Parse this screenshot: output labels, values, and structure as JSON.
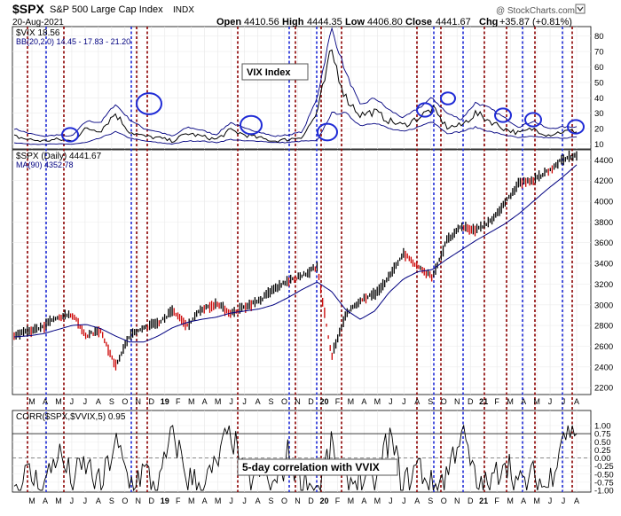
{
  "header": {
    "symbol": "$SPX",
    "name": "S&P 500 Large Cap Index",
    "exchange": "INDX",
    "date": "20-Aug-2021",
    "open_label": "Open",
    "open": "4410.56",
    "high_label": "High",
    "high": "4444.35",
    "low_label": "Low",
    "low": "4406.80",
    "close_label": "Close",
    "close": "4441.67",
    "chg_label": "Chg",
    "chg": "+35.87 (+0.81%)",
    "watermark": "@ StockCharts.com"
  },
  "vix_panel": {
    "legend_vix": "$VIX 18.56",
    "legend_bb": "BB(20,2.0) 14.45 - 17.83 - 21.20",
    "annotation": "VIX Index"
  },
  "price_panel": {
    "legend_price": "$SPX (Daily) 4441.67",
    "legend_ma": "MA(90) 4352.78"
  },
  "corr_panel": {
    "legend": "CORR($SPX,$VVIX,5) 0.95",
    "annotation": "5-day correlation with VVIX"
  },
  "month_labels": [
    "M",
    "A",
    "M",
    "J",
    "J",
    "A",
    "S",
    "O",
    "N",
    "D",
    "19",
    "F",
    "M",
    "A",
    "M",
    "J",
    "J",
    "A",
    "S",
    "O",
    "N",
    "D",
    "20",
    "F",
    "M",
    "A",
    "M",
    "J",
    "J",
    "A",
    "S",
    "O",
    "N",
    "D",
    "21",
    "F",
    "M",
    "A",
    "M",
    "J",
    "J",
    "A"
  ],
  "colors": {
    "price_up": "#000000",
    "price_down": "#cc0000",
    "ma": "#000080",
    "bb": "#000080",
    "circle": "#1f2bd6",
    "line_red": "#8b0000",
    "line_blue": "#1f2bd6"
  },
  "chart_data": [
    {
      "type": "line",
      "name": "VIX",
      "title": "$VIX",
      "y_ticks": [
        10,
        20,
        30,
        40,
        50,
        60,
        70,
        80
      ],
      "ylim": [
        8,
        85
      ],
      "x": [
        "2018-05",
        "2018-06",
        "2018-07",
        "2018-08",
        "2018-09",
        "2018-10",
        "2018-11",
        "2018-12",
        "2019-01",
        "2019-02",
        "2019-03",
        "2019-04",
        "2019-05",
        "2019-06",
        "2019-07",
        "2019-08",
        "2019-09",
        "2019-10",
        "2019-11",
        "2019-12",
        "2020-01",
        "2020-02",
        "2020-03",
        "2020-04",
        "2020-05",
        "2020-06",
        "2020-07",
        "2020-08",
        "2020-09",
        "2020-10",
        "2020-11",
        "2020-12",
        "2021-01",
        "2021-02",
        "2021-03",
        "2021-04",
        "2021-05",
        "2021-06",
        "2021-07",
        "2021-08"
      ],
      "series": [
        {
          "name": "$VIX",
          "values": [
            15,
            13,
            12,
            13,
            12,
            20,
            19,
            30,
            18,
            15,
            14,
            12,
            17,
            15,
            13,
            19,
            16,
            14,
            12,
            13,
            15,
            30,
            70,
            40,
            29,
            31,
            25,
            22,
            27,
            33,
            21,
            22,
            30,
            25,
            20,
            17,
            20,
            16,
            18,
            18.56
          ]
        },
        {
          "name": "BB upper",
          "values": [
            20,
            17,
            15,
            16,
            15,
            25,
            24,
            36,
            26,
            20,
            18,
            15,
            21,
            19,
            16,
            24,
            20,
            18,
            15,
            16,
            18,
            40,
            85,
            56,
            35,
            40,
            32,
            27,
            33,
            40,
            30,
            26,
            37,
            33,
            27,
            21,
            25,
            20,
            21,
            21.2
          ]
        },
        {
          "name": "BB lower",
          "values": [
            11,
            10,
            10,
            10,
            10,
            11,
            14,
            18,
            14,
            12,
            11,
            10,
            12,
            12,
            11,
            13,
            12,
            12,
            11,
            11,
            12,
            12,
            30,
            30,
            22,
            24,
            20,
            18,
            21,
            25,
            17,
            18,
            21,
            18,
            16,
            14,
            15,
            14,
            14,
            14.45
          ]
        }
      ]
    },
    {
      "type": "line",
      "name": "SPX",
      "title": "$SPX (Daily)",
      "y_ticks": [
        2200,
        2400,
        2600,
        2800,
        3000,
        3200,
        3400,
        3600,
        3800,
        4000,
        4200,
        4400
      ],
      "ylim": [
        2150,
        4480
      ],
      "x": [
        "2018-05",
        "2018-06",
        "2018-07",
        "2018-08",
        "2018-09",
        "2018-10",
        "2018-11",
        "2018-12",
        "2019-01",
        "2019-02",
        "2019-03",
        "2019-04",
        "2019-05",
        "2019-06",
        "2019-07",
        "2019-08",
        "2019-09",
        "2019-10",
        "2019-11",
        "2019-12",
        "2020-01",
        "2020-02",
        "2020-03",
        "2020-04",
        "2020-05",
        "2020-06",
        "2020-07",
        "2020-08",
        "2020-09",
        "2020-10",
        "2020-11",
        "2020-12",
        "2021-01",
        "2021-02",
        "2021-03",
        "2021-04",
        "2021-05",
        "2021-06",
        "2021-07",
        "2021-08"
      ],
      "series": [
        {
          "name": "$SPX",
          "values": [
            2700,
            2740,
            2790,
            2880,
            2910,
            2700,
            2760,
            2400,
            2700,
            2780,
            2830,
            2940,
            2800,
            2960,
            3010,
            2920,
            2980,
            3040,
            3150,
            3230,
            3280,
            3370,
            2500,
            2900,
            3050,
            3100,
            3270,
            3500,
            3360,
            3270,
            3620,
            3750,
            3720,
            3810,
            3970,
            4180,
            4200,
            4290,
            4400,
            4441.67
          ]
        },
        {
          "name": "MA(90)",
          "values": [
            2690,
            2700,
            2720,
            2760,
            2800,
            2810,
            2770,
            2700,
            2640,
            2640,
            2700,
            2780,
            2830,
            2860,
            2880,
            2920,
            2940,
            2960,
            3000,
            3070,
            3150,
            3220,
            3130,
            2950,
            2860,
            2940,
            3120,
            3250,
            3320,
            3340,
            3440,
            3530,
            3620,
            3700,
            3780,
            3880,
            4000,
            4120,
            4230,
            4352.78
          ]
        }
      ]
    },
    {
      "type": "line",
      "name": "CORR",
      "title": "CORR($SPX,$VVIX,5)",
      "y_ticks": [
        -1.0,
        -0.75,
        -0.5,
        -0.25,
        0.0,
        0.25,
        0.5,
        0.75,
        1.0
      ],
      "ylim": [
        -1.0,
        1.0
      ],
      "series": [
        {
          "name": "CORR($SPX,$VVIX,5)",
          "values": [
            -0.9,
            -0.5,
            -0.95,
            0.2,
            -0.7,
            -0.2,
            -0.95,
            0.5,
            -0.8,
            -0.4,
            -0.98,
            0.85,
            -0.6,
            -0.9,
            -0.3,
            0.95,
            -0.85,
            -0.4,
            -0.95,
            0.1,
            -0.7,
            -0.98,
            0.3,
            -0.8,
            -0.6,
            -0.95,
            0.7,
            -0.9,
            -0.2,
            -0.95,
            -0.5,
            0.9,
            -0.8,
            -0.97,
            0.1,
            -0.9,
            -0.6,
            -0.95,
            0.8,
            0.95
          ]
        }
      ]
    }
  ]
}
